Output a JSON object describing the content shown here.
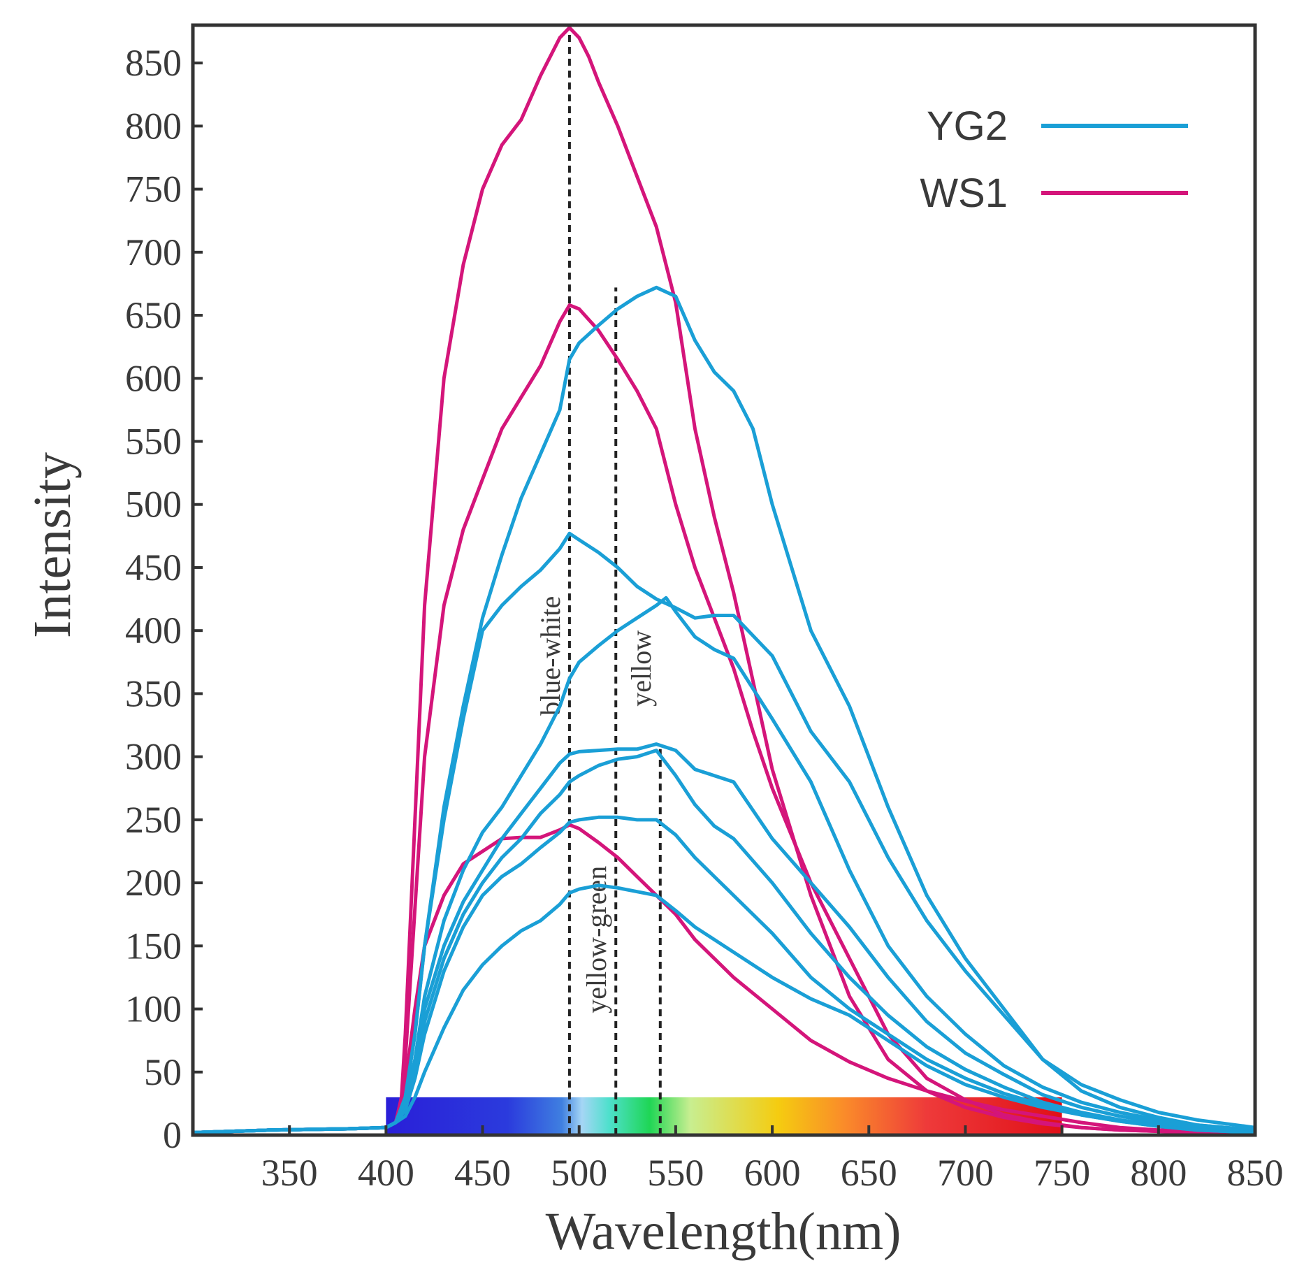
{
  "chart_data": {
    "type": "line",
    "title": "",
    "xlabel": "Wavelength(nm)",
    "ylabel": "Intensity",
    "xlim": [
      300,
      850
    ],
    "ylim": [
      0,
      880
    ],
    "xticks": [
      350,
      400,
      450,
      500,
      550,
      600,
      650,
      700,
      750,
      800,
      850
    ],
    "yticks": [
      0,
      50,
      100,
      150,
      200,
      250,
      300,
      350,
      400,
      450,
      500,
      550,
      600,
      650,
      700,
      750,
      800,
      850
    ],
    "grid": false,
    "legend": {
      "position": "top-right",
      "entries": [
        {
          "label": "YG2",
          "color": "#1a9fd6"
        },
        {
          "label": "WS1",
          "color": "#d4157a"
        }
      ]
    },
    "reference_lines": [
      {
        "x": 495,
        "label": "blue-white"
      },
      {
        "x": 519,
        "label": "yellow-green"
      },
      {
        "x": 542,
        "label": "yellow"
      }
    ],
    "spectrum_bar": {
      "x_start": 400,
      "x_end": 750,
      "y_start": 0,
      "y_end": 30
    },
    "series": [
      {
        "name": "WS1",
        "group": "WS1",
        "color": "#d4157a",
        "x": [
          300,
          340,
          380,
          400,
          405,
          408,
          410,
          415,
          420,
          430,
          440,
          450,
          460,
          470,
          480,
          490,
          495,
          500,
          505,
          510,
          520,
          530,
          540,
          550,
          560,
          570,
          580,
          590,
          600,
          620,
          640,
          660,
          680,
          700,
          720,
          740,
          760,
          780,
          800,
          820,
          850
        ],
        "y": [
          2,
          4,
          5,
          6,
          10,
          30,
          80,
          250,
          420,
          600,
          690,
          750,
          785,
          805,
          840,
          870,
          878,
          870,
          855,
          835,
          800,
          760,
          720,
          660,
          560,
          490,
          430,
          360,
          290,
          190,
          110,
          60,
          35,
          22,
          14,
          9,
          6,
          4,
          3,
          2,
          1
        ]
      },
      {
        "name": "WS1",
        "group": "WS1",
        "color": "#d4157a",
        "x": [
          300,
          340,
          380,
          400,
          405,
          408,
          410,
          415,
          420,
          430,
          440,
          450,
          460,
          470,
          480,
          490,
          495,
          500,
          510,
          520,
          530,
          540,
          550,
          560,
          570,
          580,
          590,
          600,
          620,
          640,
          660,
          680,
          700,
          720,
          740,
          760,
          780,
          800,
          820,
          850
        ],
        "y": [
          2,
          4,
          5,
          6,
          10,
          25,
          60,
          180,
          300,
          420,
          480,
          520,
          560,
          585,
          610,
          645,
          658,
          655,
          638,
          615,
          590,
          560,
          500,
          450,
          410,
          370,
          320,
          275,
          200,
          140,
          80,
          45,
          28,
          16,
          10,
          6,
          4,
          3,
          2,
          1
        ]
      },
      {
        "name": "WS1",
        "group": "WS1",
        "color": "#d4157a",
        "x": [
          300,
          340,
          380,
          400,
          405,
          410,
          415,
          420,
          430,
          440,
          450,
          460,
          470,
          480,
          490,
          495,
          500,
          510,
          520,
          530,
          540,
          550,
          560,
          570,
          580,
          600,
          620,
          640,
          660,
          680,
          700,
          720,
          740,
          760,
          780,
          800,
          850
        ],
        "y": [
          2,
          4,
          5,
          6,
          10,
          40,
          100,
          150,
          190,
          215,
          225,
          235,
          236,
          236,
          242,
          246,
          243,
          232,
          220,
          205,
          190,
          175,
          155,
          140,
          125,
          100,
          75,
          58,
          45,
          35,
          27,
          20,
          15,
          10,
          6,
          4,
          2
        ]
      },
      {
        "name": "YG2",
        "group": "YG2",
        "color": "#1a9fd6",
        "x": [
          300,
          340,
          380,
          400,
          405,
          410,
          415,
          420,
          430,
          440,
          450,
          460,
          470,
          480,
          490,
          495,
          500,
          510,
          520,
          530,
          540,
          550,
          560,
          570,
          580,
          590,
          600,
          620,
          640,
          660,
          680,
          700,
          720,
          740,
          760,
          780,
          800,
          820,
          850
        ],
        "y": [
          2,
          4,
          5,
          6,
          10,
          30,
          80,
          150,
          260,
          340,
          410,
          460,
          505,
          540,
          575,
          615,
          628,
          642,
          655,
          665,
          672,
          665,
          630,
          605,
          590,
          560,
          500,
          400,
          340,
          260,
          190,
          140,
          100,
          60,
          35,
          22,
          14,
          8,
          4
        ]
      },
      {
        "name": "YG2",
        "group": "YG2",
        "color": "#1a9fd6",
        "x": [
          300,
          340,
          380,
          400,
          405,
          410,
          415,
          420,
          430,
          440,
          450,
          460,
          470,
          480,
          490,
          495,
          500,
          510,
          520,
          530,
          540,
          550,
          560,
          570,
          580,
          600,
          620,
          640,
          660,
          680,
          700,
          720,
          740,
          760,
          780,
          800,
          820,
          850
        ],
        "y": [
          2,
          4,
          5,
          6,
          10,
          30,
          80,
          150,
          250,
          330,
          400,
          420,
          435,
          448,
          465,
          477,
          472,
          462,
          450,
          435,
          425,
          418,
          410,
          412,
          412,
          380,
          320,
          280,
          220,
          170,
          130,
          95,
          60,
          40,
          28,
          18,
          12,
          6
        ]
      },
      {
        "name": "YG2",
        "group": "YG2",
        "color": "#1a9fd6",
        "x": [
          300,
          340,
          380,
          400,
          405,
          410,
          415,
          420,
          430,
          440,
          450,
          460,
          470,
          480,
          490,
          495,
          500,
          510,
          520,
          530,
          540,
          545,
          550,
          560,
          570,
          580,
          600,
          620,
          640,
          660,
          680,
          700,
          720,
          740,
          760,
          780,
          800,
          820,
          850
        ],
        "y": [
          2,
          4,
          5,
          6,
          10,
          25,
          60,
          110,
          170,
          210,
          240,
          260,
          285,
          310,
          340,
          362,
          375,
          388,
          400,
          410,
          420,
          426,
          415,
          395,
          385,
          378,
          330,
          280,
          210,
          150,
          110,
          80,
          55,
          38,
          26,
          18,
          12,
          8,
          4
        ]
      },
      {
        "name": "YG2",
        "group": "YG2",
        "color": "#1a9fd6",
        "x": [
          300,
          340,
          380,
          400,
          405,
          410,
          415,
          420,
          430,
          440,
          450,
          460,
          470,
          480,
          490,
          495,
          500,
          510,
          520,
          530,
          540,
          550,
          560,
          570,
          580,
          600,
          620,
          640,
          660,
          680,
          700,
          720,
          740,
          760,
          780,
          800,
          820,
          850
        ],
        "y": [
          2,
          4,
          5,
          6,
          10,
          25,
          55,
          100,
          150,
          185,
          210,
          235,
          255,
          275,
          295,
          302,
          304,
          305,
          306,
          306,
          310,
          305,
          290,
          285,
          280,
          235,
          200,
          165,
          125,
          90,
          65,
          48,
          32,
          22,
          15,
          10,
          6,
          3
        ]
      },
      {
        "name": "YG2",
        "group": "YG2",
        "color": "#1a9fd6",
        "x": [
          300,
          340,
          380,
          400,
          405,
          410,
          415,
          420,
          430,
          440,
          450,
          460,
          470,
          480,
          490,
          495,
          500,
          510,
          520,
          530,
          540,
          550,
          560,
          570,
          580,
          600,
          620,
          640,
          660,
          680,
          700,
          720,
          740,
          760,
          780,
          800,
          820,
          850
        ],
        "y": [
          2,
          4,
          5,
          6,
          10,
          20,
          50,
          90,
          140,
          175,
          200,
          220,
          235,
          255,
          270,
          280,
          285,
          293,
          298,
          300,
          305,
          285,
          262,
          245,
          235,
          200,
          160,
          125,
          95,
          70,
          52,
          38,
          26,
          18,
          12,
          8,
          5,
          3
        ]
      },
      {
        "name": "YG2",
        "group": "YG2",
        "color": "#1a9fd6",
        "x": [
          300,
          340,
          380,
          400,
          405,
          410,
          415,
          420,
          430,
          440,
          450,
          460,
          470,
          480,
          490,
          495,
          500,
          510,
          520,
          530,
          540,
          550,
          560,
          570,
          580,
          600,
          620,
          640,
          660,
          680,
          700,
          720,
          740,
          760,
          780,
          800,
          820,
          850
        ],
        "y": [
          2,
          4,
          5,
          6,
          10,
          20,
          45,
          80,
          130,
          165,
          190,
          205,
          215,
          228,
          240,
          248,
          250,
          252,
          252,
          250,
          250,
          238,
          220,
          205,
          190,
          160,
          125,
          100,
          80,
          60,
          45,
          33,
          24,
          16,
          11,
          7,
          4,
          2
        ]
      },
      {
        "name": "YG2",
        "group": "YG2",
        "color": "#1a9fd6",
        "x": [
          300,
          340,
          380,
          400,
          405,
          410,
          415,
          420,
          430,
          440,
          450,
          460,
          470,
          480,
          490,
          495,
          500,
          510,
          520,
          530,
          540,
          550,
          560,
          570,
          580,
          600,
          620,
          640,
          660,
          680,
          700,
          720,
          740,
          760,
          780,
          800,
          820,
          850
        ],
        "y": [
          2,
          4,
          5,
          6,
          10,
          15,
          30,
          50,
          85,
          115,
          135,
          150,
          162,
          170,
          183,
          192,
          195,
          198,
          196,
          193,
          190,
          178,
          165,
          155,
          145,
          125,
          108,
          95,
          75,
          55,
          40,
          30,
          22,
          16,
          11,
          7,
          4,
          2
        ]
      }
    ]
  }
}
